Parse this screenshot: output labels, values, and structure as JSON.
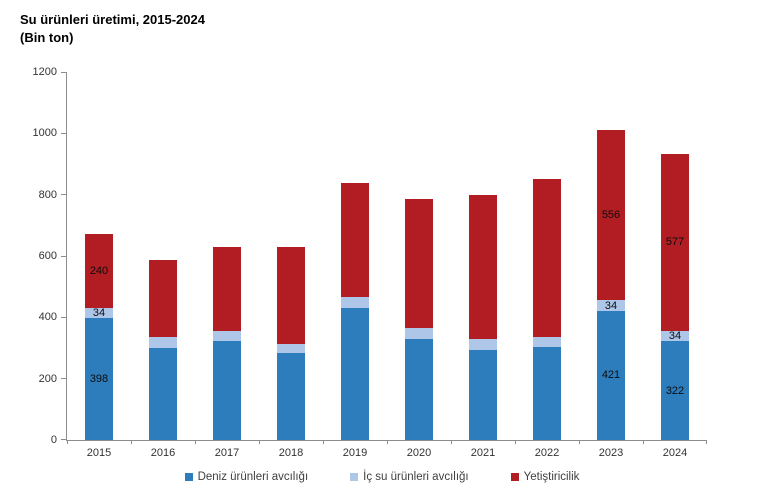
{
  "title": "Su ürünleri üretimi, 2015-2024",
  "subtitle": "(Bin ton)",
  "colors": {
    "axis": "#8c8c8c",
    "tick_label": "#333333",
    "value_label": "#0d0d0d",
    "legend_text": "#404040",
    "background": "#ffffff"
  },
  "chart_data": {
    "type": "bar",
    "stacked": true,
    "title": "Su ürünleri üretimi, 2015-2024",
    "unit_label": "(Bin ton)",
    "categories": [
      "2015",
      "2016",
      "2017",
      "2018",
      "2019",
      "2020",
      "2021",
      "2022",
      "2023",
      "2024"
    ],
    "series": [
      {
        "name": "Deniz ürünleri avcılığı",
        "color": "#2d7dbd",
        "values": [
          398,
          301,
          322,
          284,
          432,
          331,
          295,
          302,
          421,
          322
        ]
      },
      {
        "name": "İç su ürünleri avcılığı",
        "color": "#aec6e8",
        "values": [
          34,
          34,
          32,
          30,
          33,
          33,
          33,
          33,
          34,
          34
        ]
      },
      {
        "name": "Yetiştiricilik",
        "color": "#b11d23",
        "values": [
          240,
          253,
          276,
          314,
          373,
          421,
          472,
          515,
          556,
          577
        ]
      }
    ],
    "data_labels_on": [
      "2015",
      "2023",
      "2024"
    ],
    "ylim": [
      0,
      1200
    ],
    "yticks": [
      0,
      200,
      400,
      600,
      800,
      1000,
      1200
    ],
    "grid": false,
    "legend_position": "bottom",
    "xlabel": "",
    "ylabel": ""
  }
}
